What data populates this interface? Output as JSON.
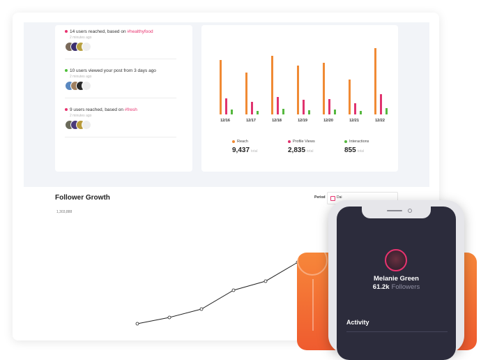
{
  "activity": {
    "items": [
      {
        "text": "14 users reached, based on ",
        "tag": "#healthyfood",
        "time": "2 minutes ago",
        "dot": "#e8336f"
      },
      {
        "text": "10 users viewed your post from 3 days ago",
        "tag": "",
        "time": "2 minutes ago",
        "dot": "#4fbf3a"
      },
      {
        "text": "9 users reached, based on ",
        "tag": "#fresh",
        "time": "2 minutes ago",
        "dot": "#e8336f"
      }
    ]
  },
  "chart_data": {
    "type": "bar",
    "categories": [
      "12/16",
      "12/17",
      "12/18",
      "12/19",
      "12/20",
      "12/21",
      "12/22"
    ],
    "series": [
      {
        "name": "Reach",
        "color": "#f08a34",
        "values": [
          78,
          60,
          84,
          70,
          74,
          50,
          95
        ]
      },
      {
        "name": "Profile Views",
        "color": "#e0336e",
        "values": [
          23,
          18,
          25,
          21,
          22,
          16,
          29
        ]
      },
      {
        "name": "Interactions",
        "color": "#56b83f",
        "values": [
          7,
          5,
          8,
          6,
          7,
          5,
          9
        ]
      }
    ],
    "ylim": [
      0,
      100
    ]
  },
  "legend": [
    {
      "label": "Reach",
      "value": "9,437",
      "unit": "total",
      "color": "#f08a34"
    },
    {
      "label": "Profile Views",
      "value": "2,835",
      "unit": "total",
      "color": "#e0336e"
    },
    {
      "label": "Interactions",
      "value": "855",
      "unit": "total",
      "color": "#56b83f"
    }
  ],
  "follower_growth": {
    "title": "Follower Growth",
    "y_tick": "1,303,888",
    "period_label": "Period",
    "period_value": "Dai",
    "series": [
      {
        "x": 0,
        "y": 1
      },
      {
        "x": 1,
        "y": 1.9
      },
      {
        "x": 2,
        "y": 3.1
      },
      {
        "x": 3,
        "y": 5.8
      },
      {
        "x": 4,
        "y": 7.1
      },
      {
        "x": 5,
        "y": 9.8
      }
    ]
  },
  "profile": {
    "name": "Melanie Green",
    "followers_count": "61.2k",
    "followers_label": "Followers",
    "activity_heading": "Activity"
  },
  "colors": {
    "accent_pink": "#e8336f",
    "accent_orange": "#f08a34",
    "accent_green": "#56b83f",
    "phone_screen": "#2c2c3c"
  }
}
